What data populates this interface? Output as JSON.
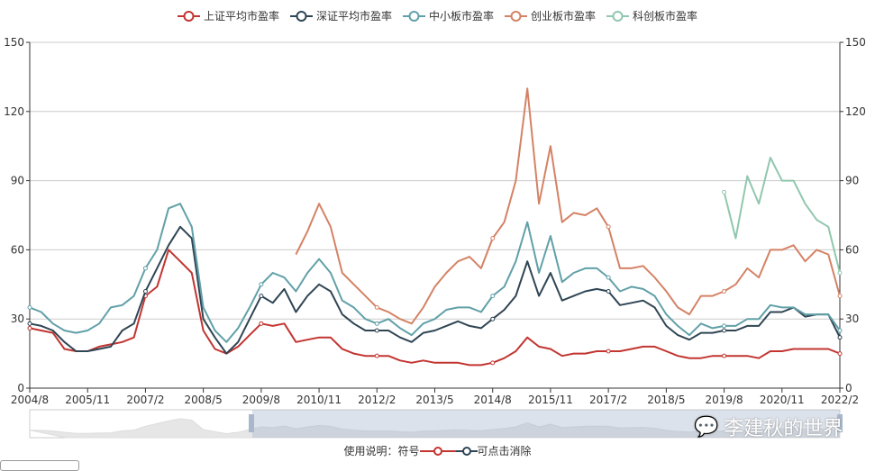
{
  "colors": {
    "sh": "#c23531",
    "sz": "#2f4554",
    "sme": "#61a0a8",
    "gem": "#d48265",
    "star": "#91c7ae"
  },
  "legend": [
    {
      "name": "上证平均市盈率",
      "color": "#c23531"
    },
    {
      "name": "深证平均市盈率",
      "color": "#2f4554"
    },
    {
      "name": "中小板市盈率",
      "color": "#61a0a8"
    },
    {
      "name": "创业板市盈率",
      "color": "#d48265"
    },
    {
      "name": "科创板市盈率",
      "color": "#91c7ae"
    }
  ],
  "note": {
    "prefix": "使用说明：符号",
    "suffix": "可点击消除"
  },
  "watermark": "李建秋的世界",
  "chart_data": {
    "type": "line",
    "ylim": [
      0,
      150
    ],
    "yticks": [
      0,
      30,
      60,
      90,
      120,
      150
    ],
    "grid": true,
    "legend_position": "top",
    "xtick_labels": [
      "2004/8",
      "2005/11",
      "2007/2",
      "2008/5",
      "2009/8",
      "2010/11",
      "2012/2",
      "2013/5",
      "2014/8",
      "2015/11",
      "2017/2",
      "2018/5",
      "2019/8",
      "2020/11",
      "2022/2"
    ],
    "x": [
      "2004/8",
      "2004/11",
      "2005/2",
      "2005/5",
      "2005/8",
      "2005/11",
      "2006/2",
      "2006/5",
      "2006/8",
      "2006/11",
      "2007/2",
      "2007/5",
      "2007/8",
      "2007/11",
      "2008/2",
      "2008/5",
      "2008/8",
      "2008/11",
      "2009/2",
      "2009/5",
      "2009/8",
      "2009/11",
      "2010/2",
      "2010/5",
      "2010/8",
      "2010/11",
      "2011/2",
      "2011/5",
      "2011/8",
      "2011/11",
      "2012/2",
      "2012/5",
      "2012/8",
      "2012/11",
      "2013/2",
      "2013/5",
      "2013/8",
      "2013/11",
      "2014/2",
      "2014/5",
      "2014/8",
      "2014/11",
      "2015/2",
      "2015/5",
      "2015/8",
      "2015/11",
      "2016/2",
      "2016/5",
      "2016/8",
      "2016/11",
      "2017/2",
      "2017/5",
      "2017/8",
      "2017/11",
      "2018/2",
      "2018/5",
      "2018/8",
      "2018/11",
      "2019/2",
      "2019/5",
      "2019/8",
      "2019/11",
      "2020/2",
      "2020/5",
      "2020/8",
      "2020/11",
      "2021/2",
      "2021/5",
      "2021/8",
      "2021/11",
      "2022/2"
    ],
    "series": [
      {
        "name": "上证平均市盈率",
        "values": [
          26,
          25,
          24,
          17,
          16,
          16,
          18,
          19,
          20,
          22,
          40,
          44,
          60,
          55,
          50,
          25,
          17,
          15,
          18,
          23,
          28,
          27,
          28,
          20,
          21,
          22,
          22,
          17,
          15,
          14,
          14,
          14,
          12,
          11,
          12,
          11,
          11,
          11,
          10,
          10,
          11,
          13,
          16,
          22,
          18,
          17,
          14,
          15,
          15,
          16,
          16,
          16,
          17,
          18,
          18,
          16,
          14,
          13,
          13,
          14,
          14,
          14,
          14,
          13,
          16,
          16,
          17,
          17,
          17,
          17,
          15
        ]
      },
      {
        "name": "深证平均市盈率",
        "values": [
          28,
          27,
          25,
          20,
          16,
          16,
          17,
          18,
          25,
          28,
          42,
          52,
          62,
          70,
          65,
          30,
          22,
          15,
          20,
          30,
          40,
          37,
          43,
          33,
          40,
          45,
          42,
          32,
          28,
          25,
          25,
          25,
          22,
          20,
          24,
          25,
          27,
          29,
          27,
          26,
          30,
          34,
          40,
          55,
          40,
          50,
          38,
          40,
          42,
          43,
          42,
          36,
          37,
          38,
          35,
          27,
          23,
          21,
          24,
          24,
          25,
          25,
          27,
          27,
          33,
          33,
          35,
          31,
          32,
          32,
          22
        ]
      },
      {
        "name": "中小板市盈率",
        "values": [
          35,
          33,
          28,
          25,
          24,
          25,
          28,
          35,
          36,
          40,
          52,
          60,
          78,
          80,
          70,
          35,
          25,
          20,
          26,
          35,
          45,
          50,
          48,
          42,
          50,
          56,
          50,
          38,
          35,
          30,
          28,
          30,
          26,
          23,
          28,
          30,
          34,
          35,
          35,
          33,
          40,
          44,
          55,
          72,
          50,
          66,
          46,
          50,
          52,
          52,
          48,
          42,
          44,
          43,
          40,
          32,
          27,
          23,
          28,
          26,
          27,
          27,
          30,
          30,
          36,
          35,
          35,
          32,
          32,
          32,
          25
        ]
      },
      {
        "name": "创业板市盈率",
        "values": [
          null,
          null,
          null,
          null,
          null,
          null,
          null,
          null,
          null,
          null,
          null,
          null,
          null,
          null,
          null,
          null,
          null,
          null,
          null,
          null,
          null,
          null,
          null,
          58,
          68,
          80,
          70,
          50,
          45,
          40,
          35,
          33,
          30,
          28,
          35,
          44,
          50,
          55,
          57,
          52,
          65,
          72,
          90,
          130,
          80,
          105,
          72,
          76,
          75,
          78,
          70,
          52,
          52,
          53,
          48,
          42,
          35,
          32,
          40,
          40,
          42,
          45,
          52,
          48,
          60,
          60,
          62,
          55,
          60,
          58,
          40
        ]
      },
      {
        "name": "科创板市盈率",
        "values": [
          null,
          null,
          null,
          null,
          null,
          null,
          null,
          null,
          null,
          null,
          null,
          null,
          null,
          null,
          null,
          null,
          null,
          null,
          null,
          null,
          null,
          null,
          null,
          null,
          null,
          null,
          null,
          null,
          null,
          null,
          null,
          null,
          null,
          null,
          null,
          null,
          null,
          null,
          null,
          null,
          null,
          null,
          null,
          null,
          null,
          null,
          null,
          null,
          null,
          null,
          null,
          null,
          null,
          null,
          null,
          null,
          null,
          null,
          null,
          null,
          85,
          65,
          92,
          80,
          100,
          90,
          90,
          80,
          73,
          70,
          50
        ]
      }
    ]
  }
}
